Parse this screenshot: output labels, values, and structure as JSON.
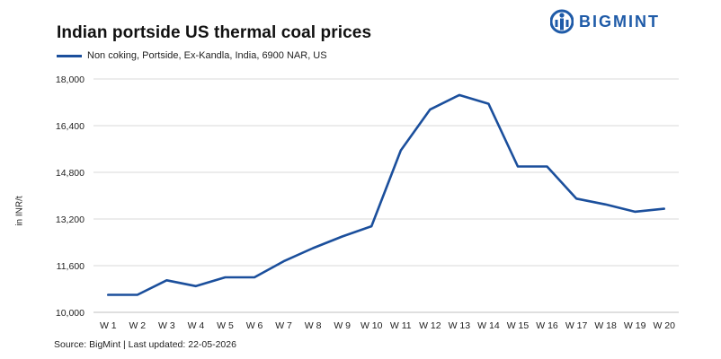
{
  "logo": {
    "text": "BIGMINT",
    "brand_color": "#1f5ba8"
  },
  "footer": {
    "source": "Source: BigMint | Last updated: 22-05-2026"
  },
  "chart_data": {
    "type": "line",
    "title": "Indian portside US thermal coal prices",
    "xlabel": "",
    "ylabel": "in INR/t",
    "categories": [
      "W 1",
      "W 2",
      "W 3",
      "W 4",
      "W 5",
      "W 6",
      "W 7",
      "W 8",
      "W 9",
      "W 10",
      "W 11",
      "W 12",
      "W 13",
      "W 14",
      "W 15",
      "W 16",
      "W 17",
      "W 18",
      "W 19",
      "W 20"
    ],
    "series": [
      {
        "name": "Non coking, Portside, Ex-Kandla, India, 6900 NAR, US",
        "color": "#1b4f9c",
        "values": [
          10600,
          10600,
          11100,
          10900,
          11200,
          11200,
          11750,
          12200,
          12600,
          12950,
          15550,
          16950,
          17450,
          17150,
          15000,
          15000,
          13900,
          13700,
          13450,
          13550
        ]
      }
    ],
    "ylim": [
      10000,
      18000
    ],
    "yticks": [
      10000,
      11600,
      13200,
      14800,
      16400,
      18000
    ],
    "ytick_labels": [
      "10,000",
      "11,600",
      "13,200",
      "14,800",
      "16,400",
      "18,000"
    ],
    "grid": "horizontal",
    "legend_position": "top-left"
  }
}
